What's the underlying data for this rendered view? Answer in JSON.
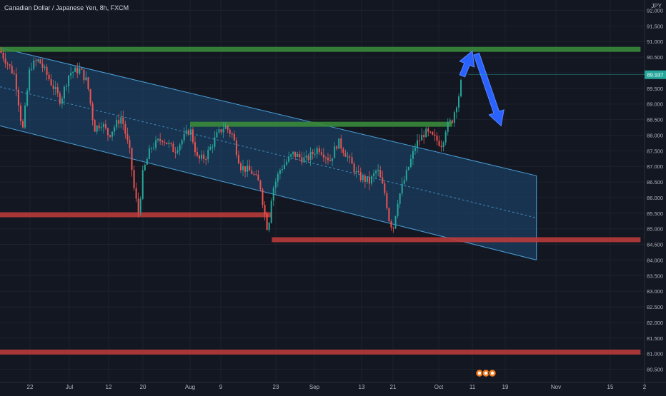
{
  "header": {
    "symbol_title": "Canadian Dollar / Japanese Yen, 8h, FXCM",
    "currency": "JPY"
  },
  "price_badge": {
    "value": "89.937",
    "color": "#26a69a"
  },
  "colors": {
    "background": "#131722",
    "grid": "#1e222d",
    "candle_up": "#26a69a",
    "candle_down": "#ef5350",
    "channel_fill": "#1e4a74",
    "channel_line": "#4a9fd8",
    "support": "#b83a3a",
    "resistance": "#3a8a3a",
    "arrow": "#2962ff"
  },
  "axis": {
    "y_ticks": [
      "92.000",
      "91.500",
      "91.000",
      "90.500",
      "90.000",
      "89.500",
      "89.000",
      "88.500",
      "88.000",
      "87.500",
      "87.000",
      "86.500",
      "86.000",
      "85.500",
      "85.000",
      "84.500",
      "84.000",
      "83.500",
      "83.000",
      "82.500",
      "82.000",
      "81.500",
      "81.000",
      "80.500"
    ],
    "x_ticks": [
      "22",
      "Jul",
      "12",
      "20",
      "Aug",
      "9",
      "23",
      "Sep",
      "13",
      "21",
      "Oct",
      "11",
      "19",
      "Nov",
      "15",
      "2"
    ]
  },
  "footer_icons": [
    "event-icon",
    "event-icon",
    "event-icon"
  ],
  "chart_data": {
    "type": "candlestick",
    "title": "Canadian Dollar / Japanese Yen, 8h, FXCM",
    "y_range": [
      80.3,
      92.2
    ],
    "y_scale": "linear",
    "grid": true,
    "close_path": [
      [
        "Jun 14",
        90.7
      ],
      [
        "Jun 18",
        89.9
      ],
      [
        "Jun 20",
        88.1
      ],
      [
        "Jun 22",
        90.2
      ],
      [
        "Jun 24",
        90.4
      ],
      [
        "Jun 26",
        89.9
      ],
      [
        "Jun 29",
        89.1
      ],
      [
        "Jul 1",
        90.0
      ],
      [
        "Jul 4",
        90.1
      ],
      [
        "Jul 6",
        89.7
      ],
      [
        "Jul 8",
        88.2
      ],
      [
        "Jul 10",
        88.4
      ],
      [
        "Jul 12",
        88.0
      ],
      [
        "Jul 15",
        88.6
      ],
      [
        "Jul 17",
        87.4
      ],
      [
        "Jul 18",
        86.2
      ],
      [
        "Jul 19",
        85.5
      ],
      [
        "Jul 20",
        86.8
      ],
      [
        "Jul 22",
        87.6
      ],
      [
        "Jul 25",
        87.9
      ],
      [
        "Jul 28",
        87.5
      ],
      [
        "Aug 1",
        88.2
      ],
      [
        "Aug 3",
        87.2
      ],
      [
        "Aug 5",
        87.3
      ],
      [
        "Aug 8",
        88.0
      ],
      [
        "Aug 10",
        88.3
      ],
      [
        "Aug 12",
        88.0
      ],
      [
        "Aug 14",
        87.0
      ],
      [
        "Aug 17",
        86.8
      ],
      [
        "Aug 19",
        86.4
      ],
      [
        "Aug 20",
        85.6
      ],
      [
        "Aug 21",
        84.9
      ],
      [
        "Aug 22",
        86.2
      ],
      [
        "Aug 24",
        86.9
      ],
      [
        "Aug 27",
        87.4
      ],
      [
        "Aug 30",
        87.2
      ],
      [
        "Sep 2",
        87.6
      ],
      [
        "Sep 5",
        87.2
      ],
      [
        "Sep 7",
        87.8
      ],
      [
        "Sep 9",
        87.4
      ],
      [
        "Sep 12",
        86.7
      ],
      [
        "Sep 15",
        86.5
      ],
      [
        "Sep 17",
        86.9
      ],
      [
        "Sep 19",
        86.1
      ],
      [
        "Sep 20",
        85.3
      ],
      [
        "Sep 21",
        85.0
      ],
      [
        "Sep 22",
        85.9
      ],
      [
        "Sep 24",
        86.8
      ],
      [
        "Sep 26",
        87.7
      ],
      [
        "Sep 28",
        88.1
      ],
      [
        "Sep 30",
        87.9
      ],
      [
        "Oct 2",
        87.7
      ],
      [
        "Oct 3",
        88.2
      ],
      [
        "Oct 5",
        88.5
      ],
      [
        "Oct 6",
        88.9
      ],
      [
        "Oct 7",
        89.3
      ],
      [
        "Oct 8",
        89.9
      ]
    ],
    "channel": {
      "upper": [
        [
          "Jun 14",
          90.8
        ],
        [
          "Oct 27",
          86.7
        ]
      ],
      "lower": [
        [
          "Jun 14",
          88.3
        ],
        [
          "Oct 27",
          84.0
        ]
      ]
    },
    "horizontal_levels": [
      {
        "kind": "resistance",
        "price": 90.75,
        "from": "Jun 14",
        "to": "Nov 30"
      },
      {
        "kind": "resistance",
        "price": 88.35,
        "from": "Aug 1",
        "to": "Oct 5"
      },
      {
        "kind": "support",
        "price": 85.45,
        "from": "Jun 14",
        "to": "Aug 22"
      },
      {
        "kind": "support",
        "price": 84.65,
        "from": "Aug 22",
        "to": "Nov 30"
      },
      {
        "kind": "support",
        "price": 81.05,
        "from": "Jun 14",
        "to": "Nov 30"
      }
    ],
    "projection_arrows": [
      {
        "from": [
          "Oct 8",
          89.9
        ],
        "to": [
          "Oct 11",
          90.7
        ]
      },
      {
        "from": [
          "Oct 12",
          90.6
        ],
        "to": [
          "Oct 18",
          88.3
        ]
      }
    ]
  }
}
